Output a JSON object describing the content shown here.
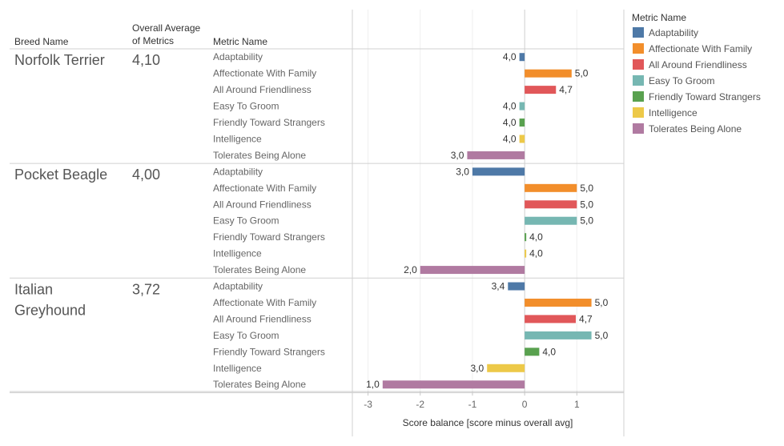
{
  "chart_data": {
    "type": "bar",
    "orientation": "horizontal",
    "headers": {
      "breed": "Breed Name",
      "average": [
        "Overall Average",
        "of Metrics"
      ],
      "metric": "Metric Name"
    },
    "xlabel": "Score balance  [score minus overall avg]",
    "xlim": [
      -3.3,
      1.9
    ],
    "xticks": [
      "-3",
      "-2",
      "-1",
      "0",
      "1"
    ],
    "xtick_values": [
      -3,
      -2,
      -1,
      0,
      1
    ],
    "legend": {
      "title": "Metric Name",
      "position": "right",
      "entries": [
        {
          "name": "Adaptability",
          "color": "#4e79a7"
        },
        {
          "name": "Affectionate With Family",
          "color": "#f28e2b"
        },
        {
          "name": "All Around Friendliness",
          "color": "#e15759"
        },
        {
          "name": "Easy To Groom",
          "color": "#76b7b2"
        },
        {
          "name": "Friendly Toward Strangers",
          "color": "#59a14f"
        },
        {
          "name": "Intelligence",
          "color": "#edc948"
        },
        {
          "name": "Tolerates Being Alone",
          "color": "#b07aa1"
        }
      ]
    },
    "groups": [
      {
        "breed_lines": [
          "Norfolk Terrier"
        ],
        "average": 4.1,
        "average_label": "4,10",
        "metrics": [
          {
            "name": "Adaptability",
            "score": 4.0,
            "label": "4,0"
          },
          {
            "name": "Affectionate With Family",
            "score": 5.0,
            "label": "5,0"
          },
          {
            "name": "All Around Friendliness",
            "score": 4.7,
            "label": "4,7"
          },
          {
            "name": "Easy To Groom",
            "score": 4.0,
            "label": "4,0"
          },
          {
            "name": "Friendly Toward Strangers",
            "score": 4.0,
            "label": "4,0"
          },
          {
            "name": "Intelligence",
            "score": 4.0,
            "label": "4,0"
          },
          {
            "name": "Tolerates Being Alone",
            "score": 3.0,
            "label": "3,0"
          }
        ]
      },
      {
        "breed_lines": [
          "Pocket Beagle"
        ],
        "average": 4.0,
        "average_label": "4,00",
        "metrics": [
          {
            "name": "Adaptability",
            "score": 3.0,
            "label": "3,0"
          },
          {
            "name": "Affectionate With Family",
            "score": 5.0,
            "label": "5,0"
          },
          {
            "name": "All Around Friendliness",
            "score": 5.0,
            "label": "5,0"
          },
          {
            "name": "Easy To Groom",
            "score": 5.0,
            "label": "5,0"
          },
          {
            "name": "Friendly Toward Strangers",
            "score": 4.0,
            "label": "4,0"
          },
          {
            "name": "Intelligence",
            "score": 4.0,
            "label": "4,0"
          },
          {
            "name": "Tolerates Being Alone",
            "score": 2.0,
            "label": "2,0"
          }
        ]
      },
      {
        "breed_lines": [
          "Italian",
          "Greyhound"
        ],
        "average": 3.72,
        "average_label": "3,72",
        "metrics": [
          {
            "name": "Adaptability",
            "score": 3.4,
            "label": "3,4"
          },
          {
            "name": "Affectionate With Family",
            "score": 5.0,
            "label": "5,0"
          },
          {
            "name": "All Around Friendliness",
            "score": 4.7,
            "label": "4,7"
          },
          {
            "name": "Easy To Groom",
            "score": 5.0,
            "label": "5,0"
          },
          {
            "name": "Friendly Toward Strangers",
            "score": 4.0,
            "label": "4,0"
          },
          {
            "name": "Intelligence",
            "score": 3.0,
            "label": "3,0"
          },
          {
            "name": "Tolerates Being Alone",
            "score": 1.0,
            "label": "1,0"
          }
        ]
      }
    ]
  }
}
